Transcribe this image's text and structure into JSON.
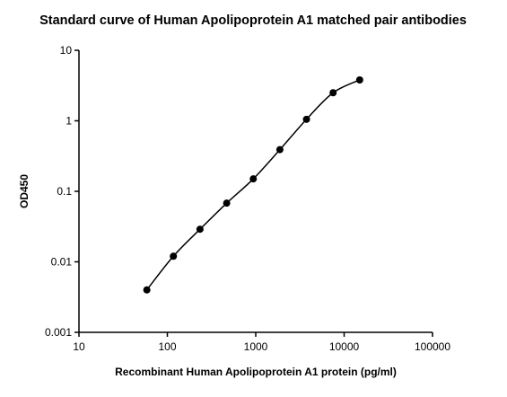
{
  "chart_data": {
    "type": "scatter",
    "title": "Standard curve of Human Apolipoprotein A1 matched pair antibodies",
    "x_label": "Recombinant Human Apolipoprotein A1 protein (pg/ml)",
    "y_label": "OD450",
    "x_scale": "log",
    "y_scale": "log",
    "xlim": [
      10,
      100000
    ],
    "ylim": [
      0.001,
      10
    ],
    "xticks": [
      10,
      100,
      1000,
      10000,
      100000
    ],
    "yticks": [
      0.001,
      0.01,
      0.1,
      1,
      10
    ],
    "series": [
      {
        "color": "#000000",
        "x": [
          58.6,
          117,
          234,
          469,
          938,
          1875,
          3750,
          7500,
          15000
        ],
        "values": [
          0.004,
          0.012,
          0.029,
          0.068,
          0.15,
          0.39,
          1.05,
          2.5,
          3.8
        ]
      }
    ]
  }
}
